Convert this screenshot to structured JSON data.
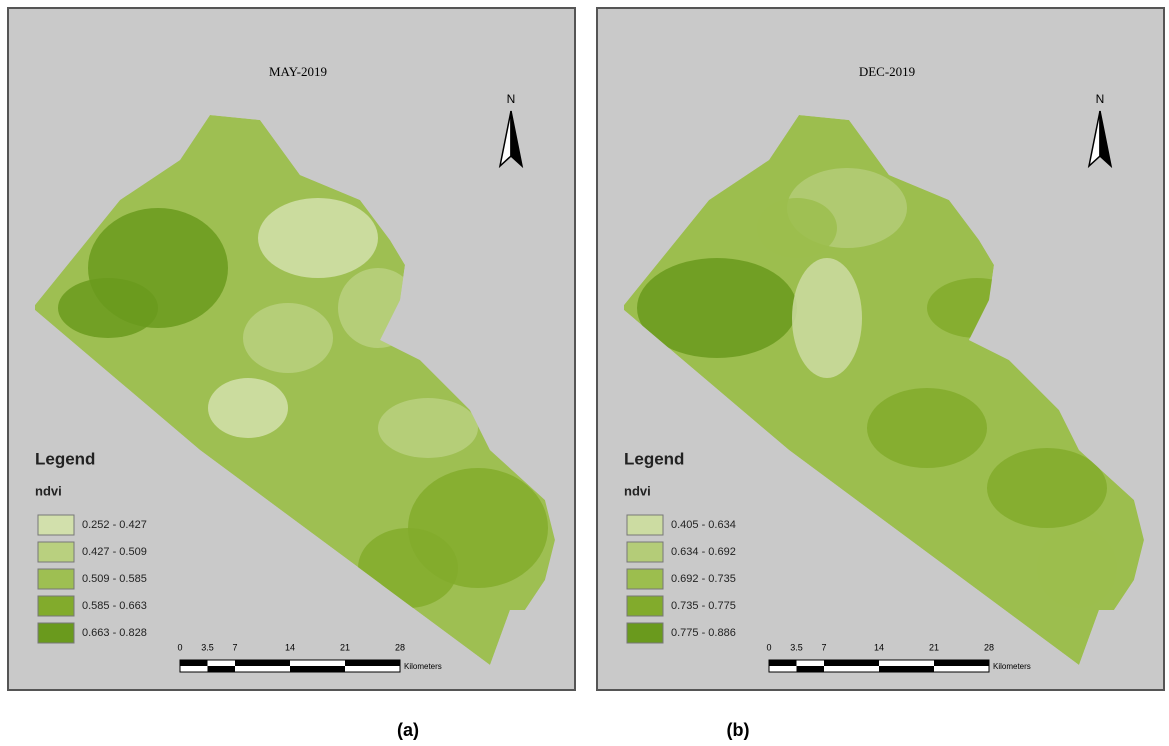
{
  "panels": [
    {
      "title": "MAY-2019",
      "north": "N",
      "legend_title": "Legend",
      "legend_field": "ndvi",
      "legend": [
        {
          "label": "0.252 - 0.427",
          "color": "#d2e0ac"
        },
        {
          "label": "0.427 - 0.509",
          "color": "#b9d07f"
        },
        {
          "label": "0.509 - 0.585",
          "color": "#9ebf52"
        },
        {
          "label": "0.585 - 0.663",
          "color": "#82ab2c"
        },
        {
          "label": "0.663 - 0.828",
          "color": "#6a9a1d"
        }
      ],
      "scale_ticks": [
        0,
        3.5,
        7,
        14,
        21,
        28
      ],
      "scale_unit": "Kilometers",
      "caption": "(a)"
    },
    {
      "title": "DEC-2019",
      "north": "N",
      "legend_title": "Legend",
      "legend_field": "ndvi",
      "legend": [
        {
          "label": "0.405 - 0.634",
          "color": "#ccdca2"
        },
        {
          "label": "0.634 - 0.692",
          "color": "#b4cc78"
        },
        {
          "label": "0.692 - 0.735",
          "color": "#9cbe4e"
        },
        {
          "label": "0.735 - 0.775",
          "color": "#82ab2c"
        },
        {
          "label": "0.775 - 0.886",
          "color": "#6a9a1d"
        }
      ],
      "scale_ticks": [
        0,
        3.5,
        7,
        14,
        21,
        28
      ],
      "scale_unit": "Kilometers",
      "caption": "(b)"
    }
  ]
}
